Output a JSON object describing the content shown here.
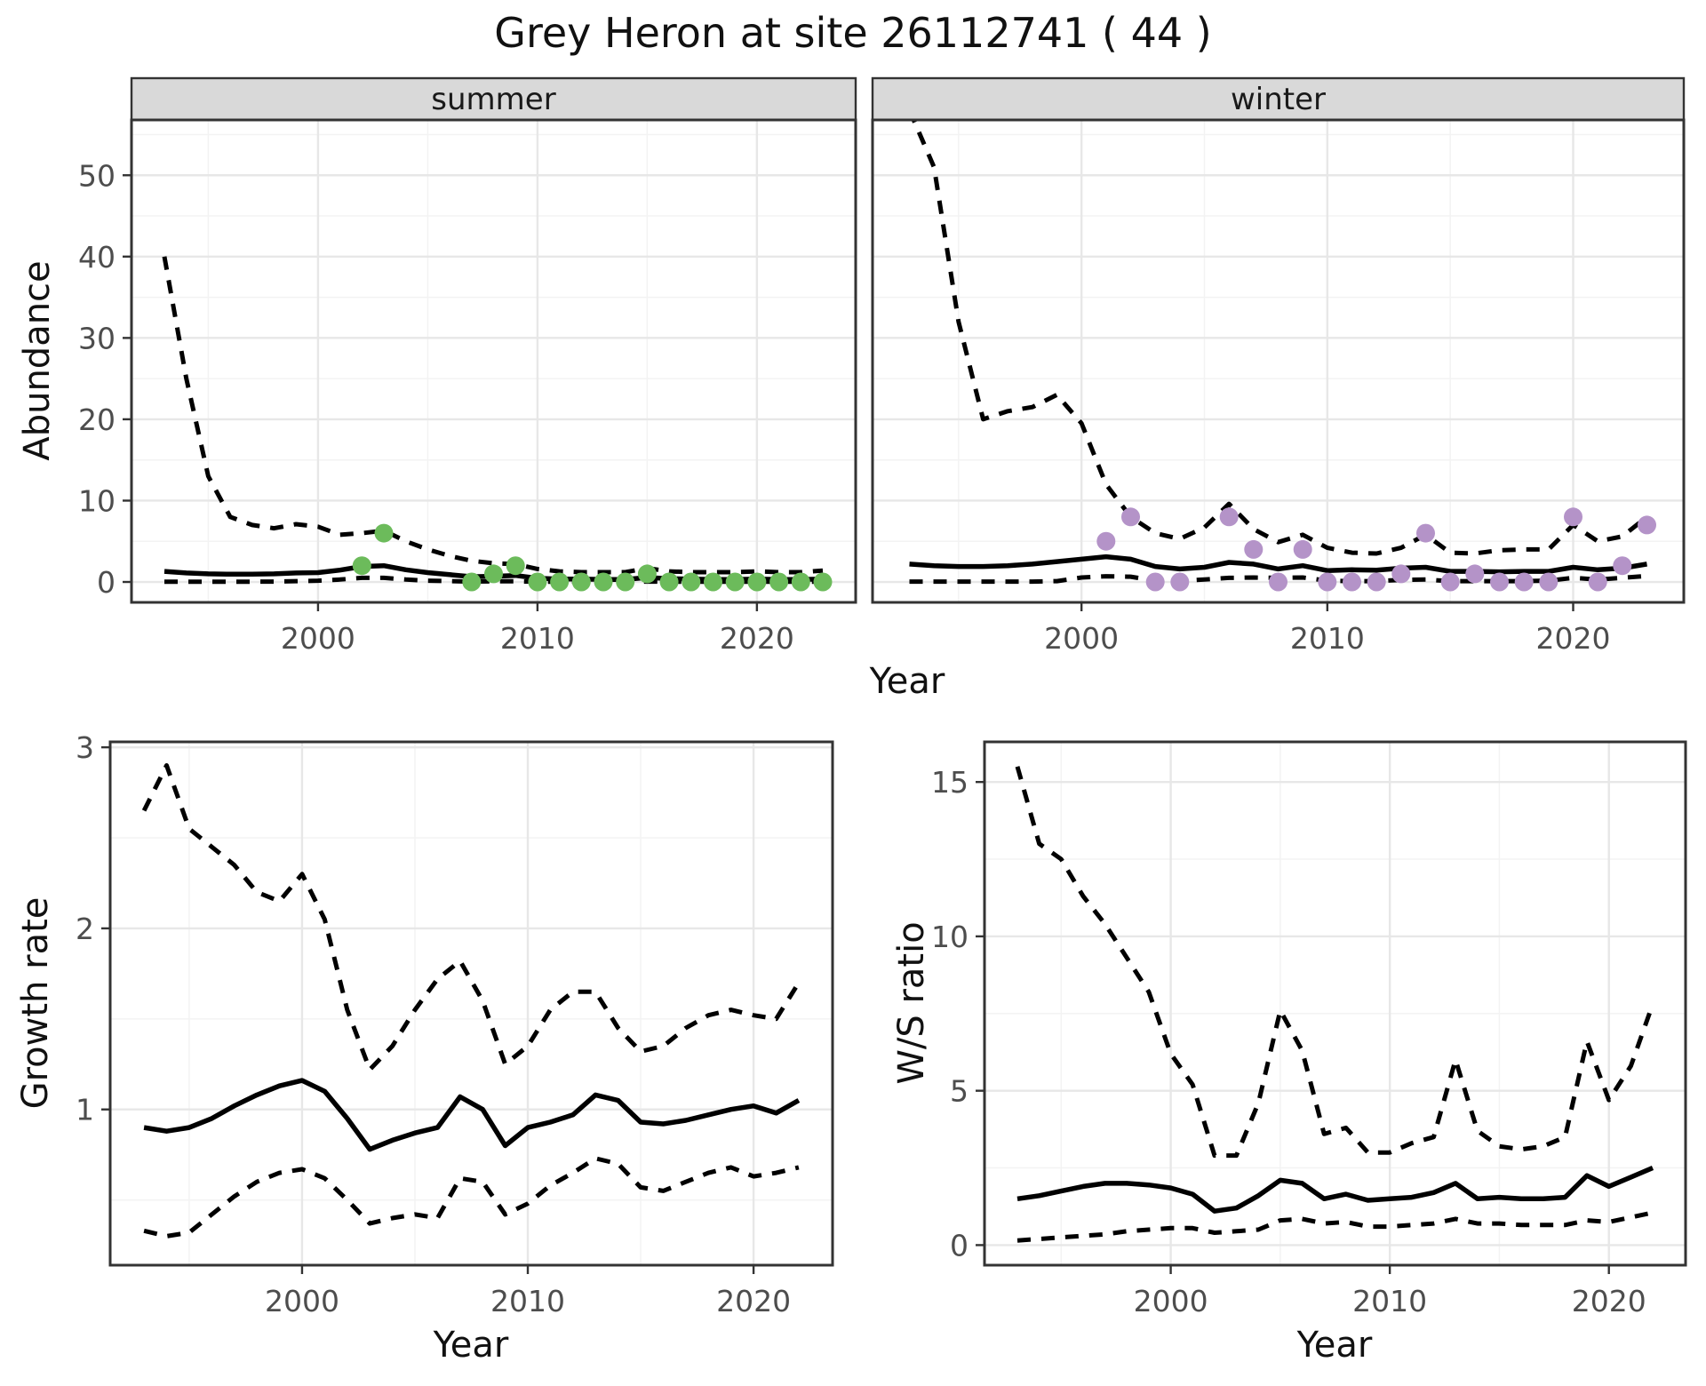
{
  "title": "Grey Heron at site 26112741 ( 44 )",
  "facets": {
    "summer": "summer",
    "winter": "winter"
  },
  "labels": {
    "abundance": "Abundance",
    "growth_rate": "Growth rate",
    "ws_ratio": "W/S ratio",
    "year": "Year"
  },
  "colors": {
    "summer_points": "#6cbb5b",
    "winter_points": "#b493c8",
    "line": "#000000",
    "strip_fill": "#d9d9d9",
    "panel_border": "#333333",
    "grid_major": "#e7e7e7",
    "grid_minor": "#f3f3f3",
    "tick_text": "#4d4d4d"
  },
  "chart_data": [
    {
      "id": "abundance-summer",
      "type": "line",
      "facet_label": "summer",
      "ylabel": "Abundance",
      "xlabel": "Year",
      "xlim": [
        1991.5,
        2024.5
      ],
      "ylim": [
        -2.51,
        56.8
      ],
      "xticks": [
        2000,
        2010,
        2020
      ],
      "xminor": [
        1995,
        2005,
        2015
      ],
      "yticks": [
        0,
        10,
        20,
        30,
        40,
        50
      ],
      "yminor": [
        5,
        15,
        25,
        35,
        45,
        55
      ],
      "x_years": [
        1993,
        1994,
        1995,
        1996,
        1997,
        1998,
        1999,
        2000,
        2001,
        2002,
        2003,
        2004,
        2005,
        2006,
        2007,
        2008,
        2009,
        2010,
        2011,
        2012,
        2013,
        2014,
        2015,
        2016,
        2017,
        2018,
        2019,
        2020,
        2021,
        2022,
        2023
      ],
      "series": [
        {
          "name": "mean",
          "style": "solid",
          "values": [
            1.3,
            1.1,
            1.0,
            0.95,
            0.95,
            1.0,
            1.1,
            1.15,
            1.45,
            1.9,
            2.0,
            1.5,
            1.15,
            0.9,
            0.65,
            0.7,
            0.8,
            0.45,
            0.35,
            0.35,
            0.3,
            0.3,
            0.55,
            0.4,
            0.35,
            0.3,
            0.3,
            0.35,
            0.3,
            0.3,
            0.35
          ]
        },
        {
          "name": "upper_ci",
          "style": "dashed",
          "values": [
            40,
            25,
            13,
            8,
            7,
            6.6,
            7.1,
            6.8,
            5.8,
            6.0,
            6.3,
            5.0,
            4.0,
            3.2,
            2.6,
            2.3,
            2.2,
            1.6,
            1.3,
            1.2,
            1.2,
            1.2,
            1.7,
            1.3,
            1.2,
            1.2,
            1.2,
            1.3,
            1.2,
            1.2,
            1.4
          ]
        },
        {
          "name": "lower_ci",
          "style": "dashed",
          "values": [
            0.03,
            0.03,
            0.03,
            0.03,
            0.03,
            0.05,
            0.1,
            0.15,
            0.3,
            0.5,
            0.5,
            0.3,
            0.15,
            0.1,
            0.05,
            0.08,
            0.08,
            0.03,
            0.02,
            0.02,
            0.02,
            0.02,
            0.05,
            0.03,
            0.02,
            0.02,
            0.02,
            0.03,
            0.02,
            0.02,
            0.03
          ]
        }
      ],
      "points": {
        "name": "observed_counts",
        "color": "#6cbb5b",
        "years": [
          2002,
          2003,
          2007,
          2008,
          2009,
          2010,
          2011,
          2012,
          2013,
          2014,
          2015,
          2016,
          2017,
          2018,
          2019,
          2020,
          2021,
          2022,
          2023
        ],
        "values": [
          2,
          6,
          0,
          1,
          2,
          0,
          0,
          0,
          0,
          0,
          1,
          0,
          0,
          0,
          0,
          0,
          0,
          0,
          0
        ]
      }
    },
    {
      "id": "abundance-winter",
      "type": "line",
      "facet_label": "winter",
      "ylabel": "Abundance",
      "xlabel": "Year",
      "xlim": [
        1991.5,
        2024.5
      ],
      "ylim": [
        -2.51,
        56.8
      ],
      "xticks": [
        2000,
        2010,
        2020
      ],
      "xminor": [
        1995,
        2005,
        2015
      ],
      "yticks": [
        0,
        10,
        20,
        30,
        40,
        50
      ],
      "yminor": [
        5,
        15,
        25,
        35,
        45,
        55
      ],
      "x_years": [
        1993,
        1994,
        1995,
        1996,
        1997,
        1998,
        1999,
        2000,
        2001,
        2002,
        2003,
        2004,
        2005,
        2006,
        2007,
        2008,
        2009,
        2010,
        2011,
        2012,
        2013,
        2014,
        2015,
        2016,
        2017,
        2018,
        2019,
        2020,
        2021,
        2022,
        2023
      ],
      "series": [
        {
          "name": "mean",
          "style": "solid",
          "values": [
            2.2,
            2.0,
            1.9,
            1.9,
            2.0,
            2.2,
            2.5,
            2.8,
            3.1,
            2.8,
            1.9,
            1.6,
            1.8,
            2.4,
            2.2,
            1.6,
            2.0,
            1.4,
            1.5,
            1.45,
            1.7,
            1.8,
            1.3,
            1.3,
            1.25,
            1.3,
            1.3,
            1.8,
            1.5,
            1.7,
            2.2
          ]
        },
        {
          "name": "upper_ci",
          "style": "dashed",
          "values": [
            58,
            51,
            32,
            20,
            21,
            21.5,
            23,
            19.5,
            12,
            8,
            6,
            5.3,
            6.7,
            9.6,
            6.5,
            4.9,
            5.8,
            4.2,
            3.6,
            3.5,
            4.2,
            5.8,
            3.6,
            3.5,
            3.9,
            4.0,
            4.0,
            7.0,
            5.0,
            5.6,
            8.0
          ]
        },
        {
          "name": "lower_ci",
          "style": "dashed",
          "values": [
            0.05,
            0.05,
            0.05,
            0.05,
            0.05,
            0.05,
            0.1,
            0.55,
            0.7,
            0.65,
            0.15,
            0.12,
            0.3,
            0.5,
            0.55,
            0.5,
            0.55,
            0.15,
            0.1,
            0.1,
            0.25,
            0.3,
            0.1,
            0.1,
            0.1,
            0.1,
            0.15,
            0.5,
            0.3,
            0.5,
            0.75
          ]
        }
      ],
      "points": {
        "name": "observed_counts",
        "color": "#b493c8",
        "years": [
          2001,
          2002,
          2003,
          2004,
          2006,
          2007,
          2008,
          2009,
          2010,
          2011,
          2012,
          2013,
          2014,
          2015,
          2016,
          2017,
          2018,
          2019,
          2020,
          2021,
          2022,
          2023
        ],
        "values": [
          5,
          8,
          0,
          0,
          8,
          4,
          0,
          4,
          0,
          0,
          0,
          1,
          6,
          0,
          1,
          0,
          0,
          0,
          8,
          0,
          2,
          7
        ]
      }
    },
    {
      "id": "growth-rate",
      "type": "line",
      "facet_label": "",
      "ylabel": "Growth rate",
      "xlabel": "Year",
      "xlim": [
        1991.5,
        2023.5
      ],
      "ylim": [
        0.14,
        3.03
      ],
      "xticks": [
        2000,
        2010,
        2020
      ],
      "xminor": [
        1995,
        2005,
        2015
      ],
      "yticks": [
        1,
        2,
        3
      ],
      "yminor": [
        0.5,
        1.5,
        2.5
      ],
      "x_years": [
        1993,
        1994,
        1995,
        1996,
        1997,
        1998,
        1999,
        2000,
        2001,
        2002,
        2003,
        2004,
        2005,
        2006,
        2007,
        2008,
        2009,
        2010,
        2011,
        2012,
        2013,
        2014,
        2015,
        2016,
        2017,
        2018,
        2019,
        2020,
        2021,
        2022
      ],
      "series": [
        {
          "name": "mean",
          "style": "solid",
          "values": [
            0.9,
            0.88,
            0.9,
            0.95,
            1.02,
            1.08,
            1.13,
            1.16,
            1.1,
            0.95,
            0.78,
            0.83,
            0.87,
            0.9,
            1.07,
            1.0,
            0.8,
            0.9,
            0.93,
            0.97,
            1.08,
            1.05,
            0.93,
            0.92,
            0.94,
            0.97,
            1.0,
            1.02,
            0.98,
            1.05
          ]
        },
        {
          "name": "upper_ci",
          "style": "dashed",
          "values": [
            2.65,
            2.9,
            2.55,
            2.45,
            2.35,
            2.2,
            2.15,
            2.3,
            2.05,
            1.55,
            1.22,
            1.35,
            1.55,
            1.72,
            1.82,
            1.6,
            1.25,
            1.35,
            1.55,
            1.65,
            1.65,
            1.45,
            1.32,
            1.35,
            1.45,
            1.52,
            1.55,
            1.52,
            1.5,
            1.7
          ]
        },
        {
          "name": "lower_ci",
          "style": "dashed",
          "values": [
            0.33,
            0.3,
            0.32,
            0.42,
            0.52,
            0.6,
            0.65,
            0.67,
            0.62,
            0.5,
            0.37,
            0.4,
            0.42,
            0.4,
            0.62,
            0.6,
            0.42,
            0.48,
            0.58,
            0.65,
            0.73,
            0.7,
            0.57,
            0.55,
            0.6,
            0.65,
            0.68,
            0.63,
            0.65,
            0.68
          ]
        }
      ],
      "points": null
    },
    {
      "id": "ws-ratio",
      "type": "line",
      "facet_label": "",
      "ylabel": "W/S ratio",
      "xlabel": "Year",
      "xlim": [
        1991.5,
        2023.5
      ],
      "ylim": [
        -0.65,
        16.3
      ],
      "xticks": [
        2000,
        2010,
        2020
      ],
      "xminor": [
        1995,
        2005,
        2015
      ],
      "yticks": [
        0,
        5,
        10,
        15
      ],
      "yminor": [
        2.5,
        7.5,
        12.5
      ],
      "x_years": [
        1993,
        1994,
        1995,
        1996,
        1997,
        1998,
        1999,
        2000,
        2001,
        2002,
        2003,
        2004,
        2005,
        2006,
        2007,
        2008,
        2009,
        2010,
        2011,
        2012,
        2013,
        2014,
        2015,
        2016,
        2017,
        2018,
        2019,
        2020,
        2021,
        2022
      ],
      "series": [
        {
          "name": "mean",
          "style": "solid",
          "values": [
            1.5,
            1.6,
            1.75,
            1.9,
            2.0,
            2.0,
            1.95,
            1.85,
            1.65,
            1.1,
            1.2,
            1.6,
            2.1,
            2.0,
            1.5,
            1.65,
            1.45,
            1.5,
            1.55,
            1.7,
            2.0,
            1.5,
            1.55,
            1.5,
            1.5,
            1.55,
            2.25,
            1.9,
            2.2,
            2.5
          ]
        },
        {
          "name": "upper_ci",
          "style": "dashed",
          "values": [
            15.5,
            13.0,
            12.5,
            11.3,
            10.4,
            9.3,
            8.2,
            6.2,
            5.2,
            2.9,
            2.9,
            4.6,
            7.6,
            6.3,
            3.6,
            3.8,
            3.0,
            3.0,
            3.3,
            3.5,
            6.0,
            3.7,
            3.2,
            3.1,
            3.2,
            3.5,
            6.6,
            4.7,
            5.8,
            7.8
          ]
        },
        {
          "name": "lower_ci",
          "style": "dashed",
          "values": [
            0.15,
            0.2,
            0.25,
            0.3,
            0.35,
            0.45,
            0.5,
            0.55,
            0.55,
            0.4,
            0.45,
            0.5,
            0.8,
            0.85,
            0.7,
            0.75,
            0.6,
            0.6,
            0.65,
            0.7,
            0.85,
            0.7,
            0.7,
            0.65,
            0.65,
            0.65,
            0.8,
            0.75,
            0.9,
            1.05
          ]
        }
      ],
      "points": null
    }
  ]
}
